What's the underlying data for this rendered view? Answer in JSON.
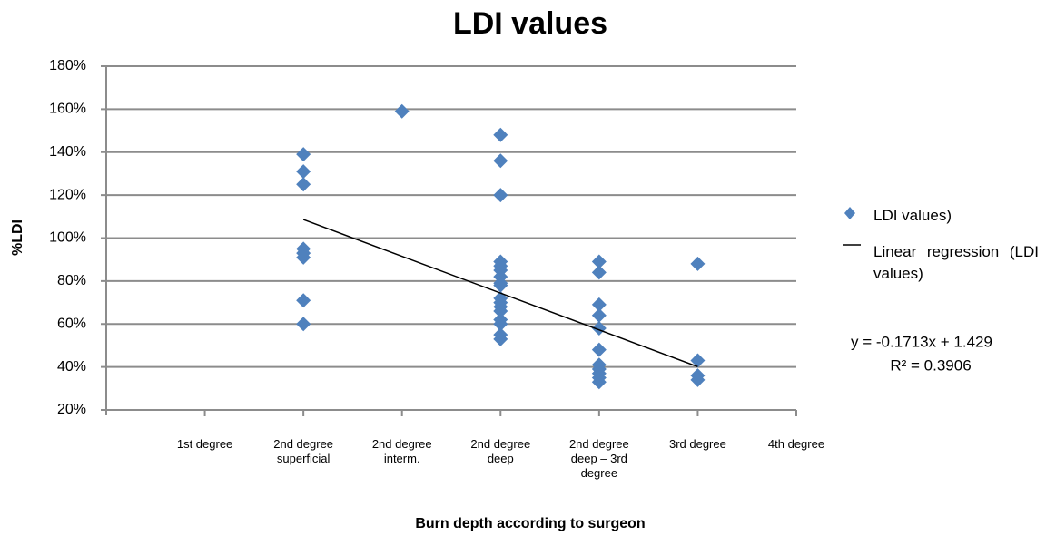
{
  "chart_data": {
    "type": "scatter",
    "title": "LDI values",
    "xlabel": "Burn depth according to surgeon",
    "ylabel": "%LDI",
    "xlim": [
      0,
      7
    ],
    "xticks": [
      {
        "value": 1,
        "label": "1st degree"
      },
      {
        "value": 2,
        "label": "2nd degree superficial"
      },
      {
        "value": 3,
        "label": "2nd degree interm."
      },
      {
        "value": 4,
        "label": "2nd degree deep"
      },
      {
        "value": 5,
        "label": "2nd degree deep – 3rd degree"
      },
      {
        "value": 6,
        "label": "3rd degree"
      },
      {
        "value": 7,
        "label": "4th degree"
      }
    ],
    "ylim": [
      20,
      180
    ],
    "yticks": [
      {
        "value": 20,
        "label": "20%"
      },
      {
        "value": 40,
        "label": "40%"
      },
      {
        "value": 60,
        "label": "60%"
      },
      {
        "value": 80,
        "label": "80%"
      },
      {
        "value": 100,
        "label": "100%"
      },
      {
        "value": 120,
        "label": "120%"
      },
      {
        "value": 140,
        "label": "140%"
      },
      {
        "value": 160,
        "label": "160%"
      },
      {
        "value": 180,
        "label": "180%"
      }
    ],
    "grid": true,
    "series": [
      {
        "name": "LDI values)",
        "color": "#4f81bd",
        "x": [
          2,
          2,
          2,
          2,
          2,
          2,
          2,
          2,
          3,
          4,
          4,
          4,
          4,
          4,
          4,
          4,
          4,
          4,
          4,
          4,
          4,
          4,
          4,
          4,
          4,
          4,
          5,
          5,
          5,
          5,
          5,
          5,
          5,
          5,
          5,
          5,
          5,
          6,
          6,
          6,
          6
        ],
        "values": [
          139,
          131,
          125,
          95,
          93,
          91,
          71,
          60,
          159,
          148,
          136,
          120,
          89,
          87,
          85,
          82,
          79,
          78,
          72,
          70,
          68,
          66,
          62,
          60,
          55,
          53,
          89,
          84,
          69,
          64,
          58,
          48,
          41,
          39,
          37,
          35,
          33,
          88,
          43,
          36,
          34
        ]
      }
    ],
    "trendline": {
      "name": "Linear regression (LDI values)",
      "color": "#000000",
      "x": [
        2,
        6
      ],
      "values": [
        108.64,
        40.12
      ],
      "equation": "y = -0.1713x + 1.429",
      "r2": "R² = 0.3906"
    }
  }
}
